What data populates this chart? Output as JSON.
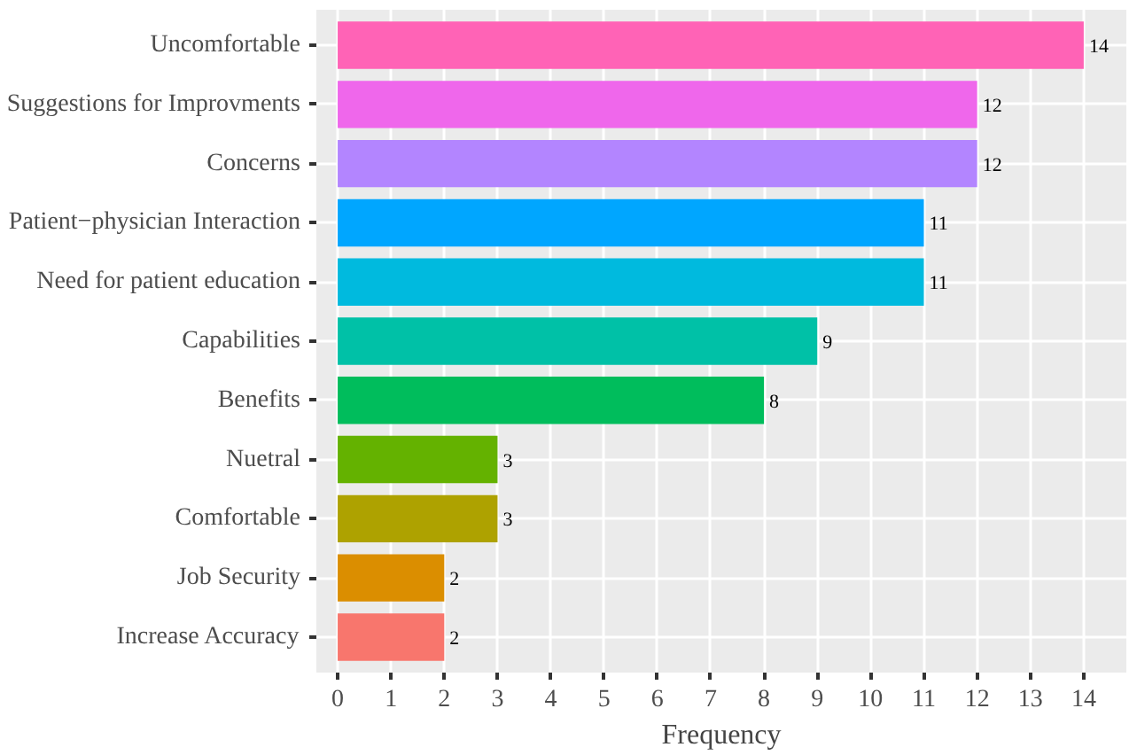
{
  "chart_data": {
    "type": "bar",
    "orientation": "horizontal",
    "xlabel": "Frequency",
    "categories": [
      "Uncomfortable",
      "Suggestions for Improvments",
      "Concerns",
      "Patient−physician Interaction",
      "Need for patient education",
      "Capabilities",
      "Benefits",
      "Nuetral",
      "Comfortable",
      "Job Security",
      "Increase Accuracy"
    ],
    "values": [
      14,
      12,
      12,
      11,
      11,
      9,
      8,
      3,
      3,
      2,
      2
    ],
    "colors": [
      "#FF63B6",
      "#EF67EB",
      "#B385FF",
      "#00A6FF",
      "#00BADE",
      "#00C1A7",
      "#00BD5C",
      "#64B200",
      "#AEA200",
      "#DB8E00",
      "#F8766D"
    ],
    "xlim": [
      -0.4,
      14.8
    ],
    "xticks": [
      0,
      1,
      2,
      3,
      4,
      5,
      6,
      7,
      8,
      9,
      10,
      11,
      12,
      13,
      14
    ],
    "grid": true,
    "data_labels": true
  }
}
